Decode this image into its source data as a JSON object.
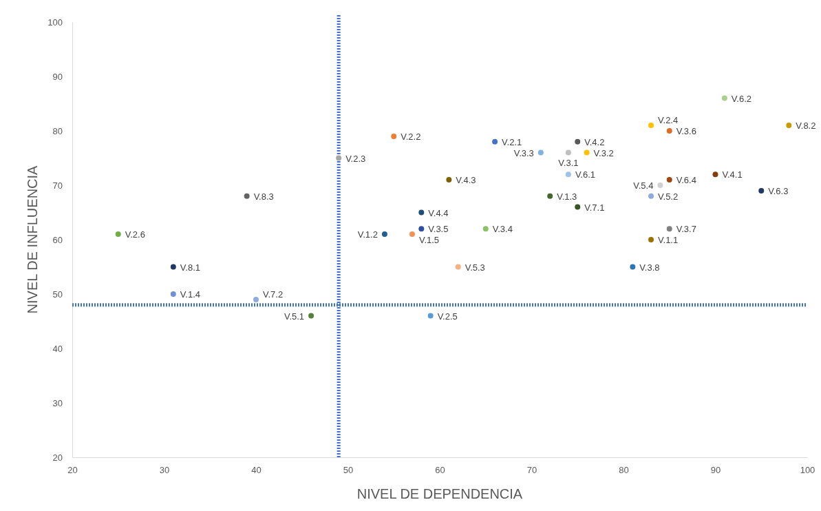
{
  "chart_data": {
    "type": "scatter",
    "xlabel": "NIVEL DE DEPENDENCIA",
    "ylabel": "NIVEL DE INFLUENCIA",
    "xlim": [
      20,
      100
    ],
    "ylim": [
      20,
      100
    ],
    "xticks": [
      20,
      30,
      40,
      50,
      60,
      70,
      80,
      90,
      100
    ],
    "yticks": [
      20,
      30,
      40,
      50,
      60,
      70,
      80,
      90,
      100
    ],
    "grid": false,
    "marker": "circle",
    "ref_lines": [
      {
        "axis": "x",
        "value": 49,
        "color": "#4472c4",
        "line_style": "dotted"
      },
      {
        "axis": "y",
        "value": 48,
        "color": "#4472c4",
        "line_style": "dotted"
      }
    ],
    "series": [
      {
        "name": "V.6.2",
        "color": "#a9d18e",
        "x": [
          91
        ],
        "values": [
          86
        ]
      },
      {
        "name": "V.2.4",
        "color": "#ffc000",
        "x": [
          83
        ],
        "values": [
          81
        ]
      },
      {
        "name": "V.3.6",
        "color": "#e06b24",
        "x": [
          85
        ],
        "values": [
          80
        ]
      },
      {
        "name": "V.8.2",
        "color": "#c99a06",
        "x": [
          98
        ],
        "values": [
          81
        ]
      },
      {
        "name": "V.2.2",
        "color": "#ed7d31",
        "x": [
          55
        ],
        "values": [
          79
        ]
      },
      {
        "name": "V.2.1",
        "color": "#4472c4",
        "x": [
          66
        ],
        "values": [
          78
        ]
      },
      {
        "name": "V.4.2",
        "color": "#595959",
        "x": [
          75
        ],
        "values": [
          78
        ]
      },
      {
        "name": "V.3.3",
        "color": "#7eb3e0",
        "x": [
          71
        ],
        "values": [
          76
        ]
      },
      {
        "name": "V.3.1",
        "color": "#bfbfbf",
        "x": [
          74
        ],
        "values": [
          76
        ]
      },
      {
        "name": "V.3.2",
        "color": "#ffc000",
        "x": [
          76
        ],
        "values": [
          76
        ]
      },
      {
        "name": "V.6.1",
        "color": "#9dc3e6",
        "x": [
          74
        ],
        "values": [
          72
        ]
      },
      {
        "name": "V.4.3",
        "color": "#7f6000",
        "x": [
          61
        ],
        "values": [
          71
        ]
      },
      {
        "name": "V.2.3",
        "color": "#a5a5a5",
        "x": [
          49
        ],
        "values": [
          75
        ]
      },
      {
        "name": "V.8.3",
        "color": "#636363",
        "x": [
          39
        ],
        "values": [
          68
        ]
      },
      {
        "name": "V.2.6",
        "color": "#70ad47",
        "x": [
          25
        ],
        "values": [
          61
        ]
      },
      {
        "name": "V.8.1",
        "color": "#203864",
        "x": [
          31
        ],
        "values": [
          55
        ]
      },
      {
        "name": "V.1.4",
        "color": "#6f8fd8",
        "x": [
          31
        ],
        "values": [
          50
        ]
      },
      {
        "name": "V.7.2",
        "color": "#8faadc",
        "x": [
          40
        ],
        "values": [
          49
        ]
      },
      {
        "name": "V.5.1",
        "color": "#548235",
        "x": [
          46
        ],
        "values": [
          46
        ]
      },
      {
        "name": "V.2.5",
        "color": "#5b9bd5",
        "x": [
          59
        ],
        "values": [
          46
        ]
      },
      {
        "name": "V.5.3",
        "color": "#f4b183",
        "x": [
          62
        ],
        "values": [
          55
        ]
      },
      {
        "name": "V.3.8",
        "color": "#2e75b6",
        "x": [
          81
        ],
        "values": [
          55
        ]
      },
      {
        "name": "V.1.1",
        "color": "#997300",
        "x": [
          83
        ],
        "values": [
          60
        ]
      },
      {
        "name": "V.3.7",
        "color": "#7f7f7f",
        "x": [
          85
        ],
        "values": [
          62
        ]
      },
      {
        "name": "V.1.2",
        "color": "#255e91",
        "x": [
          54
        ],
        "values": [
          61
        ]
      },
      {
        "name": "V.1.5",
        "color": "#f4915a",
        "x": [
          57
        ],
        "values": [
          61
        ]
      },
      {
        "name": "V.3.5",
        "color": "#2f4f9f",
        "x": [
          58
        ],
        "values": [
          62
        ]
      },
      {
        "name": "V.4.4",
        "color": "#1f4e79",
        "x": [
          58
        ],
        "values": [
          65
        ]
      },
      {
        "name": "V.3.4",
        "color": "#8cc168",
        "x": [
          65
        ],
        "values": [
          62
        ]
      },
      {
        "name": "V.1.3",
        "color": "#43682b",
        "x": [
          72
        ],
        "values": [
          68
        ]
      },
      {
        "name": "V.7.1",
        "color": "#375623",
        "x": [
          75
        ],
        "values": [
          66
        ]
      },
      {
        "name": "V.5.2",
        "color": "#8faadc",
        "x": [
          83
        ],
        "values": [
          68
        ]
      },
      {
        "name": "V.5.4",
        "color": "#d0d0d0",
        "x": [
          84
        ],
        "values": [
          70
        ]
      },
      {
        "name": "V.6.4",
        "color": "#9e480e",
        "x": [
          85
        ],
        "values": [
          71
        ]
      },
      {
        "name": "V.4.1",
        "color": "#843c0c",
        "x": [
          90
        ],
        "values": [
          72
        ]
      },
      {
        "name": "V.6.3",
        "color": "#203864",
        "x": [
          95
        ],
        "values": [
          69
        ]
      }
    ]
  }
}
